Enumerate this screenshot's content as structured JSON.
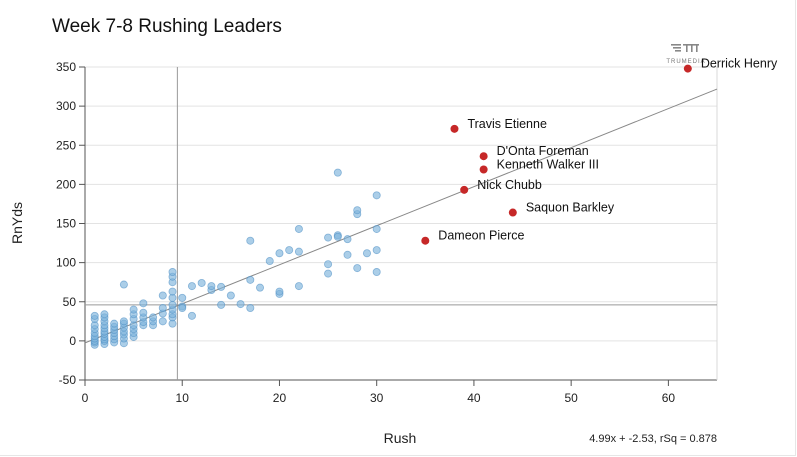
{
  "chart_data": {
    "type": "scatter",
    "title": "Week 7-8 Rushing Leaders",
    "xlabel": "Rush",
    "ylabel": "RnYds",
    "xlim": [
      0,
      65
    ],
    "ylim": [
      -50,
      350
    ],
    "x_ticks": [
      0,
      10,
      20,
      30,
      40,
      50,
      60
    ],
    "y_ticks": [
      -50,
      0,
      50,
      100,
      150,
      200,
      250,
      300,
      350
    ],
    "grid": "horizontal",
    "reference_lines": {
      "x": 9.5,
      "y": 46
    },
    "regression": {
      "slope": 4.99,
      "intercept": -2.53,
      "label": "4.99x + -2.53, rSq = 0.878"
    },
    "colors": {
      "default_point": "#7eb3dc",
      "default_stroke": "#4f8fc4",
      "highlight_point": "#c62828",
      "trend_line": "#888888",
      "ref_line": "#999999"
    },
    "highlighted": [
      {
        "name": "Derrick Henry",
        "x": 62,
        "y": 348
      },
      {
        "name": "Travis Etienne",
        "x": 38,
        "y": 271
      },
      {
        "name": "D'Onta Foreman",
        "x": 41,
        "y": 236
      },
      {
        "name": "Kenneth Walker III",
        "x": 41,
        "y": 219
      },
      {
        "name": "Nick Chubb",
        "x": 39,
        "y": 193
      },
      {
        "name": "Saquon Barkley",
        "x": 44,
        "y": 164
      },
      {
        "name": "Dameon Pierce",
        "x": 35,
        "y": 128
      }
    ],
    "points": [
      [
        1,
        -5
      ],
      [
        1,
        -2
      ],
      [
        1,
        0
      ],
      [
        1,
        3
      ],
      [
        1,
        6
      ],
      [
        1,
        10
      ],
      [
        1,
        15
      ],
      [
        1,
        20
      ],
      [
        1,
        28
      ],
      [
        1,
        32
      ],
      [
        2,
        -4
      ],
      [
        2,
        0
      ],
      [
        2,
        2
      ],
      [
        2,
        5
      ],
      [
        2,
        9
      ],
      [
        2,
        12
      ],
      [
        2,
        16
      ],
      [
        2,
        20
      ],
      [
        2,
        25
      ],
      [
        2,
        30
      ],
      [
        2,
        34
      ],
      [
        3,
        -2
      ],
      [
        3,
        2
      ],
      [
        3,
        6
      ],
      [
        3,
        10
      ],
      [
        3,
        14
      ],
      [
        3,
        18
      ],
      [
        3,
        22
      ],
      [
        4,
        -3
      ],
      [
        4,
        3
      ],
      [
        4,
        8
      ],
      [
        4,
        12
      ],
      [
        4,
        17
      ],
      [
        4,
        22
      ],
      [
        4,
        25
      ],
      [
        4,
        72
      ],
      [
        5,
        5
      ],
      [
        5,
        10
      ],
      [
        5,
        15
      ],
      [
        5,
        20
      ],
      [
        5,
        28
      ],
      [
        5,
        34
      ],
      [
        5,
        40
      ],
      [
        6,
        20
      ],
      [
        6,
        24
      ],
      [
        6,
        30
      ],
      [
        6,
        36
      ],
      [
        6,
        48
      ],
      [
        7,
        20
      ],
      [
        7,
        25
      ],
      [
        7,
        30
      ],
      [
        8,
        25
      ],
      [
        8,
        35
      ],
      [
        8,
        42
      ],
      [
        8,
        58
      ],
      [
        9,
        22
      ],
      [
        9,
        30
      ],
      [
        9,
        34
      ],
      [
        9,
        40
      ],
      [
        9,
        46
      ],
      [
        9,
        55
      ],
      [
        9,
        63
      ],
      [
        9,
        75
      ],
      [
        9,
        82
      ],
      [
        9,
        88
      ],
      [
        10,
        55
      ],
      [
        10,
        44
      ],
      [
        10,
        42
      ],
      [
        11,
        70
      ],
      [
        11,
        32
      ],
      [
        12,
        74
      ],
      [
        13,
        65
      ],
      [
        13,
        70
      ],
      [
        14,
        46
      ],
      [
        14,
        69
      ],
      [
        15,
        58
      ],
      [
        16,
        47
      ],
      [
        17,
        42
      ],
      [
        17,
        78
      ],
      [
        17,
        128
      ],
      [
        18,
        68
      ],
      [
        19,
        102
      ],
      [
        20,
        60
      ],
      [
        20,
        63
      ],
      [
        20,
        112
      ],
      [
        21,
        116
      ],
      [
        22,
        70
      ],
      [
        22,
        114
      ],
      [
        22,
        143
      ],
      [
        25,
        86
      ],
      [
        25,
        98
      ],
      [
        25,
        132
      ],
      [
        26,
        135
      ],
      [
        26,
        133
      ],
      [
        26,
        215
      ],
      [
        27,
        110
      ],
      [
        27,
        130
      ],
      [
        28,
        93
      ],
      [
        28,
        162
      ],
      [
        28,
        167
      ],
      [
        29,
        112
      ],
      [
        30,
        88
      ],
      [
        30,
        116
      ],
      [
        30,
        143
      ],
      [
        30,
        186
      ]
    ]
  }
}
